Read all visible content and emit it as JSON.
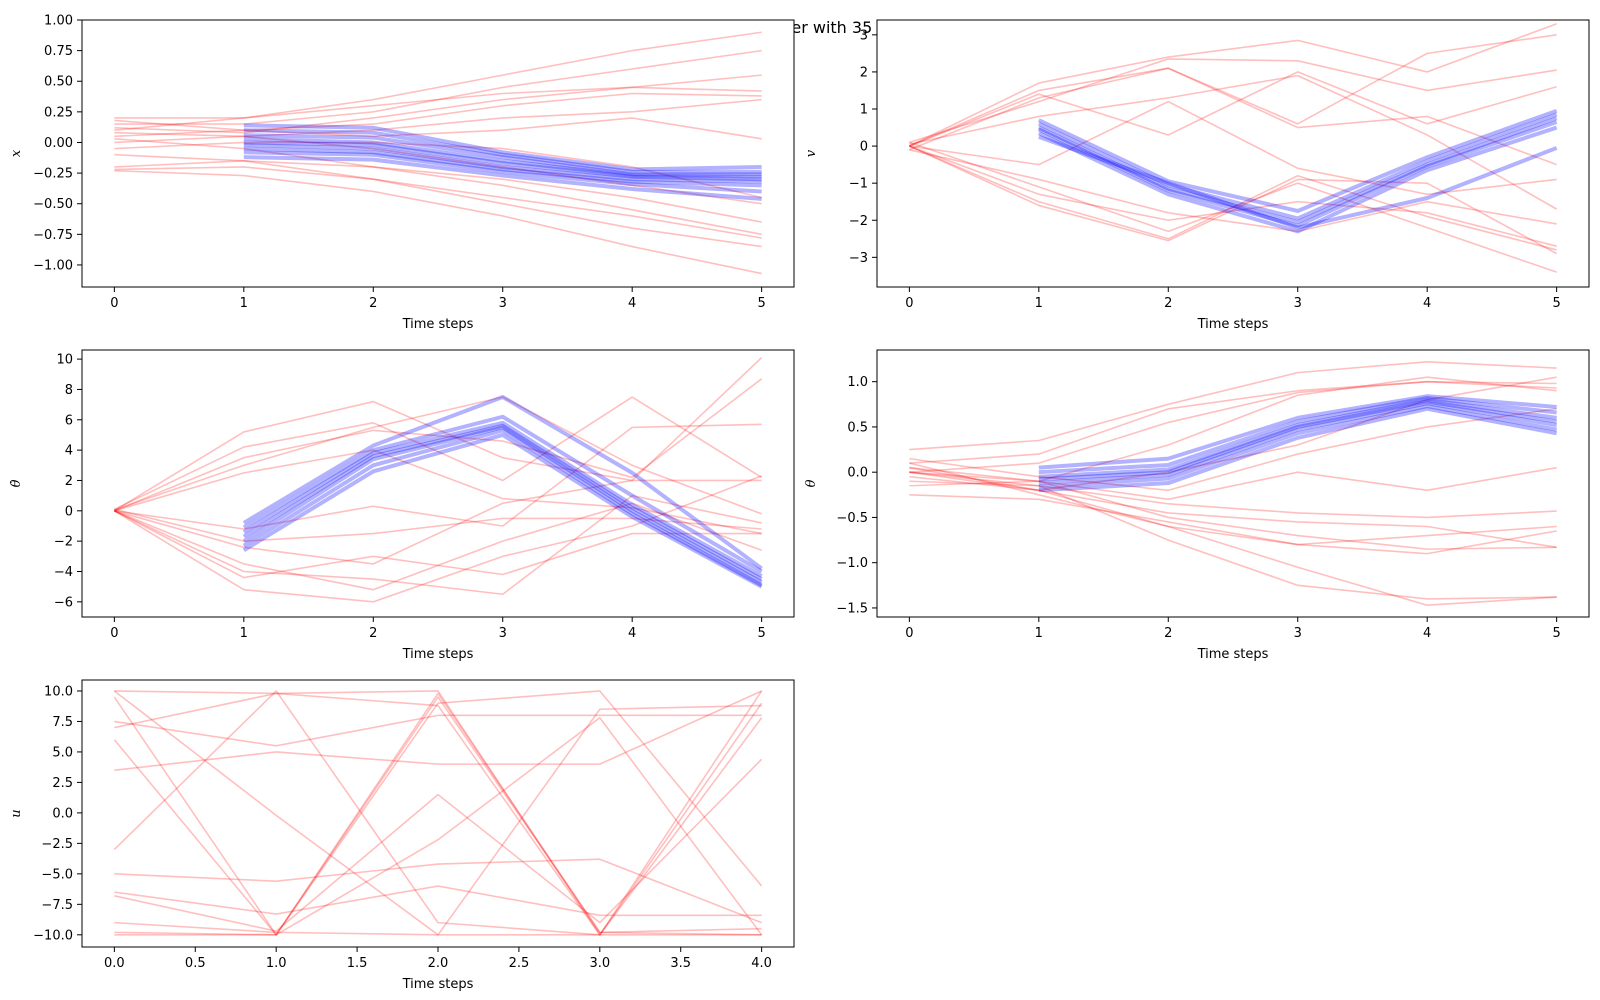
{
  "figure": {
    "title": "State values of expert vs learner with 35 number of experience",
    "colors": {
      "expert": "#ff0000",
      "learner": "#0000ff"
    }
  },
  "chart_data": [
    {
      "id": "x",
      "type": "line",
      "ylabel": "x",
      "xlabel": "Time steps",
      "xlim": [
        -0.25,
        5.25
      ],
      "ylim": [
        -1.18,
        1.0
      ],
      "xticks": [
        0,
        1,
        2,
        3,
        4,
        5
      ],
      "xtick_labels": [
        "0",
        "1",
        "2",
        "3",
        "4",
        "5"
      ],
      "yticks": [
        1.0,
        0.75,
        0.5,
        0.25,
        0.0,
        -0.25,
        -0.5,
        -0.75,
        -1.0
      ],
      "ytick_labels": [
        "1.00",
        "0.75",
        "0.50",
        "0.25",
        "0.00",
        "−0.25",
        "−0.50",
        "−0.75",
        "−1.00"
      ],
      "expert": {
        "x": [
          0,
          1,
          2,
          3,
          4,
          5
        ],
        "series": [
          [
            0.2,
            0.2,
            0.35,
            0.55,
            0.75,
            0.9
          ],
          [
            0.15,
            0.15,
            0.25,
            0.45,
            0.6,
            0.75
          ],
          [
            0.1,
            0.2,
            0.3,
            0.4,
            0.45,
            0.42
          ],
          [
            0.12,
            0.08,
            0.2,
            0.35,
            0.45,
            0.55
          ],
          [
            0.05,
            0.1,
            0.15,
            0.3,
            0.4,
            0.38
          ],
          [
            0.0,
            0.05,
            0.1,
            0.2,
            0.25,
            0.35
          ],
          [
            0.18,
            0.1,
            0.05,
            0.1,
            0.2,
            0.03
          ],
          [
            -0.05,
            0.0,
            0.0,
            -0.05,
            -0.2,
            -0.45
          ],
          [
            0.08,
            0.05,
            -0.05,
            -0.2,
            -0.35,
            -0.5
          ],
          [
            -0.2,
            -0.15,
            -0.2,
            -0.3,
            -0.45,
            -0.65
          ],
          [
            -0.22,
            -0.2,
            -0.3,
            -0.45,
            -0.6,
            -0.78
          ],
          [
            0.03,
            -0.05,
            -0.2,
            -0.35,
            -0.55,
            -0.75
          ],
          [
            -0.1,
            -0.15,
            -0.3,
            -0.5,
            -0.7,
            -0.85
          ],
          [
            -0.23,
            -0.27,
            -0.4,
            -0.6,
            -0.85,
            -1.07
          ]
        ]
      },
      "learner": {
        "x": [
          1,
          2,
          3,
          4,
          5
        ],
        "series": [
          [
            0.14,
            0.12,
            -0.08,
            -0.22,
            -0.2
          ],
          [
            0.1,
            0.08,
            -0.1,
            -0.24,
            -0.24
          ],
          [
            0.06,
            0.04,
            -0.12,
            -0.26,
            -0.26
          ],
          [
            0.03,
            0.0,
            -0.15,
            -0.27,
            -0.28
          ],
          [
            0.0,
            -0.02,
            -0.17,
            -0.28,
            -0.3
          ],
          [
            -0.02,
            -0.05,
            -0.2,
            -0.3,
            -0.32
          ],
          [
            -0.05,
            -0.08,
            -0.22,
            -0.32,
            -0.35
          ],
          [
            -0.08,
            -0.1,
            -0.24,
            -0.34,
            -0.4
          ],
          [
            -0.12,
            -0.14,
            -0.27,
            -0.38,
            -0.46
          ]
        ]
      }
    },
    {
      "id": "v",
      "type": "line",
      "ylabel": "v",
      "xlabel": "Time steps",
      "xlim": [
        -0.25,
        5.25
      ],
      "ylim": [
        -3.8,
        3.4
      ],
      "xticks": [
        0,
        1,
        2,
        3,
        4,
        5
      ],
      "xtick_labels": [
        "0",
        "1",
        "2",
        "3",
        "4",
        "5"
      ],
      "yticks": [
        3,
        2,
        1,
        0,
        -1,
        -2,
        -3
      ],
      "ytick_labels": [
        "3",
        "2",
        "1",
        "0",
        "−1",
        "−2",
        "−3"
      ],
      "expert": {
        "x": [
          0,
          1,
          2,
          3,
          4,
          5
        ],
        "series": [
          [
            0.0,
            1.7,
            2.4,
            2.85,
            2.0,
            3.3
          ],
          [
            0.0,
            1.5,
            2.1,
            0.6,
            2.5,
            3.0
          ],
          [
            0.1,
            1.2,
            2.35,
            2.3,
            1.5,
            2.05
          ],
          [
            0.0,
            1.4,
            0.3,
            2.0,
            0.6,
            1.6
          ],
          [
            -0.1,
            1.3,
            2.1,
            0.5,
            0.8,
            -0.5
          ],
          [
            0.05,
            0.8,
            1.3,
            1.9,
            0.3,
            -1.7
          ],
          [
            0.0,
            -0.5,
            1.2,
            -0.6,
            -1.3,
            -0.9
          ],
          [
            0.0,
            -1.5,
            -2.5,
            -0.8,
            -1.9,
            -2.8
          ],
          [
            0.1,
            -1.1,
            -2.3,
            -1.0,
            -2.2,
            -3.4
          ],
          [
            0.0,
            -1.6,
            -2.55,
            -0.9,
            -1.0,
            -2.9
          ],
          [
            0.0,
            -1.3,
            -2.0,
            -1.5,
            -1.8,
            -2.7
          ],
          [
            -0.1,
            -0.9,
            -1.8,
            -2.3,
            -1.5,
            -2.1
          ]
        ]
      },
      "learner": {
        "x": [
          1,
          2,
          3,
          4,
          5
        ],
        "series": [
          [
            0.7,
            -0.95,
            -1.75,
            -0.3,
            0.95
          ],
          [
            0.6,
            -1.05,
            -1.95,
            -0.4,
            0.85
          ],
          [
            0.5,
            -1.15,
            -2.05,
            -0.5,
            0.75
          ],
          [
            0.45,
            -1.2,
            -2.15,
            -0.55,
            0.65
          ],
          [
            0.35,
            -1.3,
            -2.3,
            -0.65,
            0.5
          ],
          [
            0.25,
            -1.0,
            -2.2,
            -1.4,
            -0.05
          ]
        ]
      }
    },
    {
      "id": "thetadot",
      "type": "line",
      "ylabel": "θ̇",
      "xlabel": "Time steps",
      "xlim": [
        -0.25,
        5.25
      ],
      "ylim": [
        -7.0,
        10.6
      ],
      "xticks": [
        0,
        1,
        2,
        3,
        4,
        5
      ],
      "xtick_labels": [
        "0",
        "1",
        "2",
        "3",
        "4",
        "5"
      ],
      "yticks": [
        10,
        8,
        6,
        4,
        2,
        0,
        -2,
        -4,
        -6
      ],
      "ytick_labels": [
        "10",
        "8",
        "6",
        "4",
        "2",
        "0",
        "−2",
        "−4",
        "−6"
      ],
      "expert": {
        "x": [
          0,
          1,
          2,
          3,
          4,
          5
        ],
        "series": [
          [
            0.0,
            5.2,
            7.2,
            3.5,
            2.0,
            10.1
          ],
          [
            0.1,
            4.2,
            5.8,
            2.0,
            7.5,
            2.2
          ],
          [
            0.0,
            3.5,
            5.3,
            4.6,
            2.2,
            8.7
          ],
          [
            0.0,
            2.5,
            4.0,
            0.8,
            0.2,
            -1.5
          ],
          [
            0.05,
            3.0,
            5.5,
            7.5,
            3.0,
            -0.2
          ],
          [
            0.0,
            -1.2,
            0.3,
            -1.0,
            5.5,
            5.7
          ],
          [
            0.0,
            -2.4,
            -3.5,
            0.5,
            2.0,
            2.0
          ],
          [
            0.0,
            -4.4,
            -3.0,
            -4.2,
            -1.5,
            -1.5
          ],
          [
            0.0,
            -5.2,
            -6.0,
            -3.0,
            -1.0,
            2.3
          ],
          [
            0.0,
            -4.0,
            -4.5,
            -5.5,
            1.0,
            -0.8
          ],
          [
            0.1,
            -2.0,
            -1.5,
            -0.5,
            -0.5,
            -1.2
          ],
          [
            0.0,
            -3.5,
            -5.2,
            -2.0,
            0.5,
            -2.6
          ]
        ]
      },
      "learner": {
        "x": [
          1,
          2,
          3,
          4,
          5
        ],
        "series": [
          [
            -0.8,
            4.3,
            7.5,
            2.5,
            -3.8
          ],
          [
            -1.1,
            4.0,
            6.2,
            1.0,
            -4.0
          ],
          [
            -1.4,
            3.8,
            5.8,
            0.4,
            -4.3
          ],
          [
            -1.7,
            3.6,
            5.6,
            0.2,
            -4.5
          ],
          [
            -2.0,
            3.4,
            5.5,
            0.0,
            -4.7
          ],
          [
            -2.3,
            3.0,
            5.3,
            -0.2,
            -4.9
          ],
          [
            -2.6,
            2.6,
            5.0,
            -0.4,
            -5.0
          ]
        ]
      }
    },
    {
      "id": "theta",
      "type": "line",
      "ylabel": "θ",
      "xlabel": "Time steps",
      "xlim": [
        -0.25,
        5.25
      ],
      "ylim": [
        -1.6,
        1.35
      ],
      "xticks": [
        0,
        1,
        2,
        3,
        4,
        5
      ],
      "xtick_labels": [
        "0",
        "1",
        "2",
        "3",
        "4",
        "5"
      ],
      "yticks": [
        1.0,
        0.5,
        0.0,
        -0.5,
        -1.0,
        -1.5
      ],
      "ytick_labels": [
        "1.0",
        "0.5",
        "0.0",
        "−0.5",
        "−1.0",
        "−1.5"
      ],
      "expert": {
        "x": [
          0,
          1,
          2,
          3,
          4,
          5
        ],
        "series": [
          [
            0.25,
            0.35,
            0.75,
            1.1,
            1.22,
            1.15
          ],
          [
            0.1,
            0.2,
            0.7,
            0.9,
            1.0,
            0.98
          ],
          [
            0.0,
            0.1,
            0.55,
            0.88,
            1.0,
            0.93
          ],
          [
            0.05,
            -0.1,
            0.3,
            0.85,
            1.05,
            0.9
          ],
          [
            -0.05,
            -0.2,
            0.0,
            0.3,
            0.8,
            1.05
          ],
          [
            0.15,
            -0.05,
            -0.2,
            0.2,
            0.5,
            0.7
          ],
          [
            0.0,
            -0.1,
            -0.3,
            0.0,
            -0.2,
            0.05
          ],
          [
            -0.1,
            -0.15,
            -0.35,
            -0.45,
            -0.5,
            -0.43
          ],
          [
            0.0,
            -0.2,
            -0.45,
            -0.55,
            -0.6,
            -0.83
          ],
          [
            0.1,
            -0.25,
            -0.6,
            -0.8,
            -0.7,
            -0.6
          ],
          [
            -0.25,
            -0.3,
            -0.55,
            -0.8,
            -0.9,
            -0.65
          ],
          [
            0.0,
            -0.15,
            -0.75,
            -1.25,
            -1.4,
            -1.38
          ],
          [
            0.05,
            -0.2,
            -0.6,
            -1.05,
            -1.47,
            -1.38
          ],
          [
            -0.15,
            -0.1,
            -0.5,
            -0.7,
            -0.85,
            -0.83
          ]
        ]
      },
      "learner": {
        "x": [
          1,
          2,
          3,
          4,
          5
        ],
        "series": [
          [
            0.05,
            0.15,
            0.6,
            0.84,
            0.72
          ],
          [
            0.0,
            0.08,
            0.56,
            0.82,
            0.66
          ],
          [
            -0.05,
            0.03,
            0.52,
            0.8,
            0.6
          ],
          [
            -0.08,
            0.0,
            0.5,
            0.78,
            0.56
          ],
          [
            -0.12,
            -0.03,
            0.47,
            0.76,
            0.52
          ],
          [
            -0.16,
            -0.07,
            0.43,
            0.73,
            0.47
          ],
          [
            -0.2,
            -0.12,
            0.38,
            0.7,
            0.43
          ]
        ]
      }
    },
    {
      "id": "u",
      "type": "line",
      "ylabel": "u",
      "xlabel": "Time steps",
      "xlim": [
        -0.2,
        4.2
      ],
      "ylim": [
        -11.0,
        10.9
      ],
      "xticks": [
        0,
        0.5,
        1,
        1.5,
        2,
        2.5,
        3,
        3.5,
        4
      ],
      "xtick_labels": [
        "0.0",
        "0.5",
        "1.0",
        "1.5",
        "2.0",
        "2.5",
        "3.0",
        "3.5",
        "4.0"
      ],
      "yticks": [
        10,
        7.5,
        5,
        2.5,
        0,
        -2.5,
        -5,
        -7.5,
        -10
      ],
      "ytick_labels": [
        "10.0",
        "7.5",
        "5.0",
        "2.5",
        "0.0",
        "−2.5",
        "−5.0",
        "−7.5",
        "−10.0"
      ],
      "expert": {
        "x": [
          0,
          1,
          2,
          3,
          4
        ],
        "series": [
          [
            10.0,
            9.8,
            10.0,
            -10.0,
            -10.0
          ],
          [
            9.5,
            -10.0,
            9.5,
            -9.8,
            -9.5
          ],
          [
            7.0,
            9.8,
            8.8,
            -10.0,
            10.0
          ],
          [
            7.5,
            5.5,
            8.0,
            8.0,
            8.0
          ],
          [
            3.5,
            5.0,
            4.0,
            4.0,
            10.0
          ],
          [
            6.0,
            -10.0,
            9.0,
            10.0,
            -6.0
          ],
          [
            -3.0,
            10.0,
            -9.0,
            -10.0,
            9.0
          ],
          [
            -5.0,
            -5.6,
            -4.2,
            -3.8,
            -9.0
          ],
          [
            -6.5,
            -8.3,
            -6.0,
            -8.4,
            -8.4
          ],
          [
            -6.8,
            -9.7,
            1.5,
            -9.0,
            4.4
          ],
          [
            -9.8,
            -10.0,
            -2.2,
            7.8,
            -10.0
          ],
          [
            -9.0,
            -9.8,
            -10.0,
            -10.0,
            7.8
          ],
          [
            -10.0,
            -10.0,
            9.8,
            -9.8,
            -10.0
          ],
          [
            10.0,
            -0.2,
            -10.0,
            8.5,
            8.8
          ]
        ]
      }
    }
  ]
}
